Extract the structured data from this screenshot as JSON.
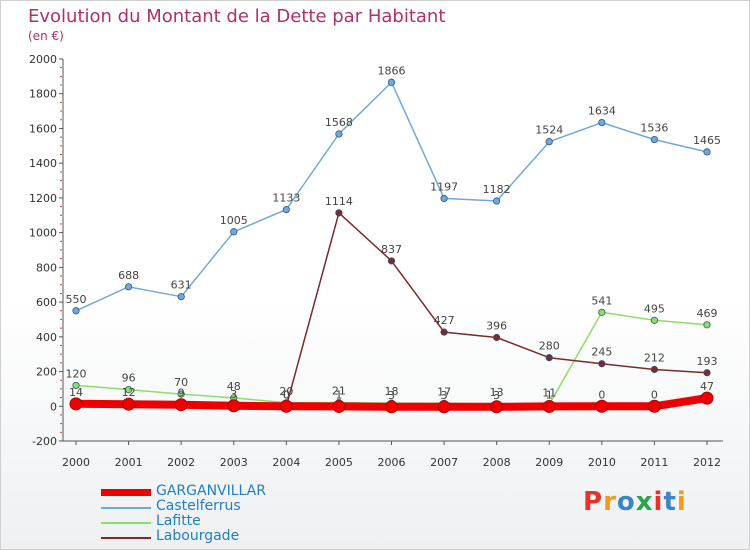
{
  "title": "Evolution du Montant de la Dette par Habitant",
  "subtitle": "(en €)",
  "logo": {
    "text": "Proxiti",
    "colors": [
      "#e8312a",
      "#f39a1e",
      "#3a86c8",
      "#2aa34a",
      "#e8312a",
      "#3a86c8",
      "#f39a1e"
    ]
  },
  "chart_data": {
    "type": "line",
    "x": [
      "2000",
      "2001",
      "2002",
      "2003",
      "2004",
      "2005",
      "2006",
      "2007",
      "2008",
      "2009",
      "2010",
      "2011",
      "2012"
    ],
    "ylim": [
      -200,
      2000
    ],
    "yticks": [
      "-200",
      "0",
      "200",
      "400",
      "600",
      "800",
      "1000",
      "1200",
      "1400",
      "1600",
      "1800",
      "2000"
    ],
    "grid": false,
    "legend_position": "bottom-left",
    "series": [
      {
        "name": "GARGANVILLAR",
        "color": "#ee0000",
        "values": [
          14,
          12,
          9,
          3,
          0,
          -1,
          -3,
          -3,
          -3,
          -1,
          0,
          0,
          47
        ],
        "labels": [
          "14",
          "12",
          "9",
          "3",
          "0",
          "1",
          "3",
          "3",
          "3",
          "1",
          "0",
          "0",
          "47"
        ]
      },
      {
        "name": "Castelferrus",
        "color": "#6fa8dc",
        "values": [
          550,
          688,
          631,
          1005,
          1133,
          1568,
          1866,
          1197,
          1182,
          1524,
          1634,
          1536,
          1465
        ],
        "labels": [
          "550",
          "688",
          "631",
          "1005",
          "1133",
          "1568",
          "1866",
          "1197",
          "1182",
          "1524",
          "1634",
          "1536",
          "1465"
        ]
      },
      {
        "name": "Lafitte",
        "color": "#8fdc6a",
        "values": [
          120,
          96,
          70,
          48,
          20,
          21,
          18,
          17,
          13,
          11,
          541,
          495,
          469
        ],
        "labels": [
          "120",
          "96",
          "70",
          "48",
          "20",
          "21",
          "18",
          "17",
          "13",
          "11",
          "541",
          "495",
          "469"
        ]
      },
      {
        "name": "Labourgade",
        "color": "#7a2a2a",
        "values": [
          null,
          null,
          null,
          null,
          0,
          1114,
          837,
          427,
          396,
          280,
          245,
          212,
          193
        ],
        "labels": [
          "",
          "",
          "",
          "",
          "0",
          "1114",
          "837",
          "427",
          "396",
          "280",
          "245",
          "212",
          "193"
        ]
      }
    ]
  }
}
